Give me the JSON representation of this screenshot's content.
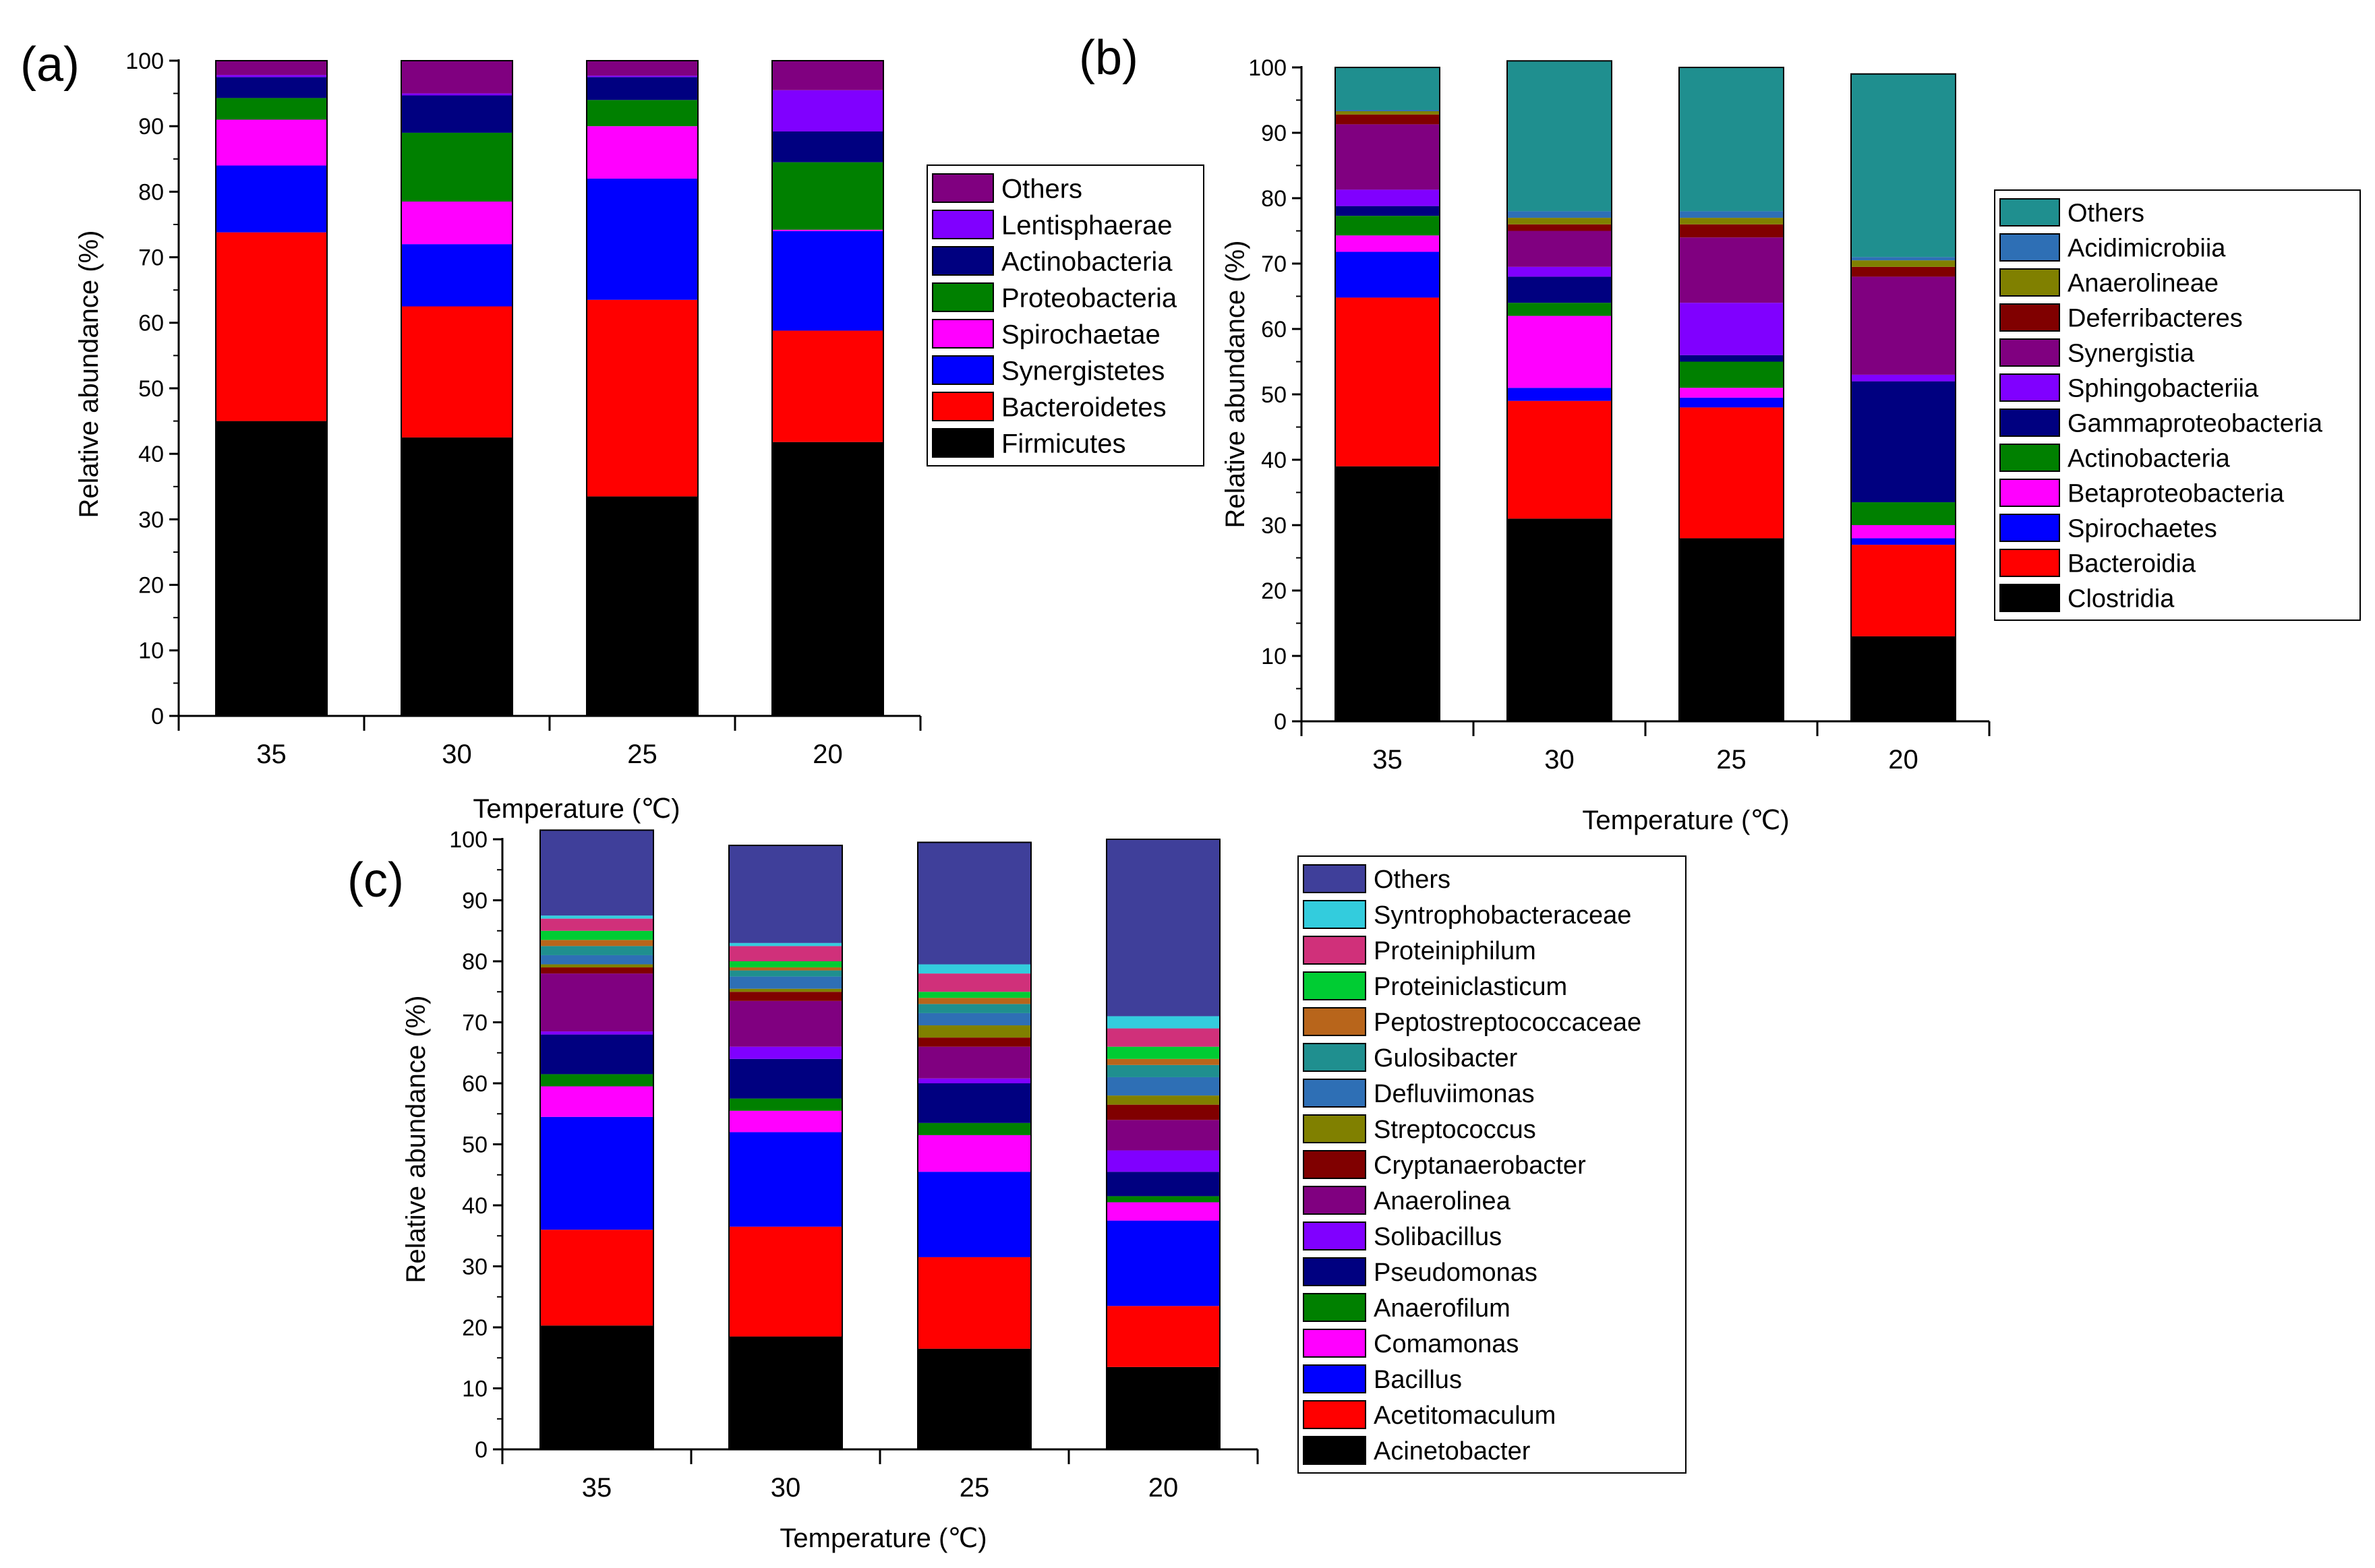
{
  "chart_data": [
    {
      "panel_label": "(a)",
      "type": "bar",
      "stacked": true,
      "categories": [
        "35",
        "30",
        "25",
        "20"
      ],
      "xlabel": "Temperature (℃)",
      "ylabel": "Relative abundance (%)",
      "ylim": [
        0,
        100
      ],
      "yticks": [
        "0",
        "10",
        "20",
        "30",
        "40",
        "50",
        "60",
        "70",
        "80",
        "90",
        "100"
      ],
      "legend_position": "right",
      "series": [
        {
          "name": "Firmicutes",
          "color": "#000000",
          "values": [
            45.0,
            42.5,
            33.5,
            41.8
          ]
        },
        {
          "name": "Bacteroidetes",
          "color": "#ff0000",
          "values": [
            28.8,
            20.0,
            30.0,
            17.0
          ]
        },
        {
          "name": "Synergistetes",
          "color": "#0000ff",
          "values": [
            10.2,
            9.5,
            18.5,
            15.2
          ]
        },
        {
          "name": "Spirochaetae",
          "color": "#ff00ff",
          "values": [
            7.0,
            6.5,
            8.0,
            0.2
          ]
        },
        {
          "name": "Proteobacteria",
          "color": "#008000",
          "values": [
            3.3,
            10.5,
            4.0,
            10.3
          ]
        },
        {
          "name": "Actinobacteria",
          "color": "#000080",
          "values": [
            3.2,
            5.7,
            3.5,
            4.7
          ]
        },
        {
          "name": "Lentisphaerae",
          "color": "#8000ff",
          "values": [
            0.3,
            0.3,
            0.2,
            6.3
          ]
        },
        {
          "name": "Others",
          "color": "#800080",
          "values": [
            2.2,
            5.0,
            2.3,
            4.5
          ]
        }
      ]
    },
    {
      "panel_label": "(b)",
      "type": "bar",
      "stacked": true,
      "categories": [
        "35",
        "30",
        "25",
        "20"
      ],
      "xlabel": "Temperature (℃)",
      "ylabel": "Relative abundance (%)",
      "ylim": [
        0,
        100
      ],
      "yticks": [
        "0",
        "10",
        "20",
        "30",
        "40",
        "50",
        "60",
        "70",
        "80",
        "90",
        "100"
      ],
      "legend_position": "right",
      "series": [
        {
          "name": "Clostridia",
          "color": "#000000",
          "values": [
            39.0,
            31.0,
            28.0,
            13.0
          ]
        },
        {
          "name": "Bacteroidia",
          "color": "#ff0000",
          "values": [
            25.8,
            18.0,
            20.0,
            14.0
          ]
        },
        {
          "name": "Spirochaetes",
          "color": "#0000ff",
          "values": [
            7.0,
            2.0,
            1.5,
            1.0
          ]
        },
        {
          "name": "Betaproteobacteria",
          "color": "#ff00ff",
          "values": [
            2.5,
            11.0,
            1.5,
            2.0
          ]
        },
        {
          "name": "Actinobacteria",
          "color": "#008000",
          "values": [
            3.0,
            2.0,
            4.0,
            3.5
          ]
        },
        {
          "name": "Gammaproteobacteria",
          "color": "#000080",
          "values": [
            1.5,
            4.0,
            1.0,
            18.5
          ]
        },
        {
          "name": "Sphingobacteriia",
          "color": "#8000ff",
          "values": [
            2.5,
            1.5,
            8.0,
            1.0
          ]
        },
        {
          "name": "Synergistia",
          "color": "#800080",
          "values": [
            10.0,
            5.5,
            10.0,
            15.0
          ]
        },
        {
          "name": "Deferribacteres",
          "color": "#800000",
          "values": [
            1.5,
            1.0,
            2.0,
            1.5
          ]
        },
        {
          "name": "Anaerolineae",
          "color": "#808000",
          "values": [
            0.5,
            1.0,
            1.0,
            1.0
          ]
        },
        {
          "name": "Acidimicrobiia",
          "color": "#2e6fb5",
          "values": [
            0.2,
            1.0,
            1.0,
            0.5
          ]
        },
        {
          "name": "Others",
          "color": "#1f8f8f",
          "values": [
            6.5,
            23.0,
            22.0,
            28.0
          ]
        }
      ]
    },
    {
      "panel_label": "(c)",
      "type": "bar",
      "stacked": true,
      "categories": [
        "35",
        "30",
        "25",
        "20"
      ],
      "xlabel": "Temperature (℃)",
      "ylabel": "Relative abundance (%)",
      "ylim": [
        0,
        100
      ],
      "yticks": [
        "0",
        "10",
        "20",
        "30",
        "40",
        "50",
        "60",
        "70",
        "80",
        "90",
        "100"
      ],
      "legend_position": "right",
      "series": [
        {
          "name": "Acinetobacter",
          "color": "#000000",
          "values": [
            20.3,
            18.5,
            16.5,
            13.5
          ]
        },
        {
          "name": "Acetitomaculum",
          "color": "#ff0000",
          "values": [
            15.7,
            18.0,
            15.0,
            10.0
          ]
        },
        {
          "name": "Bacillus",
          "color": "#0000ff",
          "values": [
            18.5,
            15.5,
            14.0,
            14.0
          ]
        },
        {
          "name": "Comamonas",
          "color": "#ff00ff",
          "values": [
            5.0,
            3.5,
            6.0,
            3.0
          ]
        },
        {
          "name": "Anaerofilum",
          "color": "#008000",
          "values": [
            2.0,
            2.0,
            2.0,
            1.0
          ]
        },
        {
          "name": "Pseudomonas",
          "color": "#000080",
          "values": [
            6.5,
            6.5,
            6.5,
            4.0
          ]
        },
        {
          "name": "Solibacillus",
          "color": "#8000ff",
          "values": [
            0.5,
            2.0,
            0.8,
            3.5
          ]
        },
        {
          "name": "Anaerolinea",
          "color": "#800080",
          "values": [
            9.5,
            7.5,
            5.2,
            5.0
          ]
        },
        {
          "name": "Cryptanaerobacter",
          "color": "#800000",
          "values": [
            1.0,
            1.5,
            1.5,
            2.5
          ]
        },
        {
          "name": "Streptococcus",
          "color": "#808000",
          "values": [
            0.5,
            0.5,
            2.0,
            1.5
          ]
        },
        {
          "name": "Defluviimonas",
          "color": "#2e6fb5",
          "values": [
            1.5,
            2.0,
            2.0,
            3.0
          ]
        },
        {
          "name": "Gulosibacter",
          "color": "#1f8f8f",
          "values": [
            1.5,
            1.0,
            1.5,
            2.0
          ]
        },
        {
          "name": "Peptostreptococcaceae",
          "color": "#b8651b",
          "values": [
            1.0,
            0.5,
            1.0,
            1.0
          ]
        },
        {
          "name": "Proteiniclasticum",
          "color": "#00cc33",
          "values": [
            1.5,
            1.0,
            1.0,
            2.0
          ]
        },
        {
          "name": "Proteiniphilum",
          "color": "#d0307a",
          "values": [
            2.0,
            2.5,
            3.0,
            3.0
          ]
        },
        {
          "name": "Syntrophobacteraceae",
          "color": "#33ccdd",
          "values": [
            0.5,
            0.5,
            1.5,
            2.0
          ]
        },
        {
          "name": "Others",
          "color": "#3f3f9a",
          "values": [
            14.0,
            16.0,
            20.0,
            29.0
          ]
        }
      ]
    }
  ]
}
